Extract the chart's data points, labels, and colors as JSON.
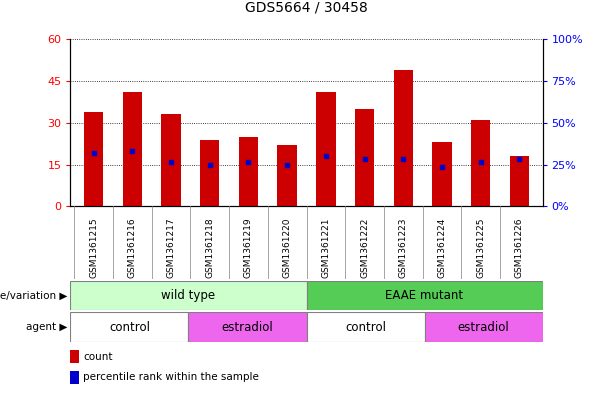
{
  "title": "GDS5664 / 30458",
  "samples": [
    "GSM1361215",
    "GSM1361216",
    "GSM1361217",
    "GSM1361218",
    "GSM1361219",
    "GSM1361220",
    "GSM1361221",
    "GSM1361222",
    "GSM1361223",
    "GSM1361224",
    "GSM1361225",
    "GSM1361226"
  ],
  "counts": [
    34,
    41,
    33,
    24,
    25,
    22,
    41,
    35,
    49,
    23,
    31,
    18
  ],
  "percentile_ranks": [
    19,
    20,
    16,
    15,
    16,
    15,
    18,
    17,
    17,
    14,
    16,
    17
  ],
  "ylim_left": [
    0,
    60
  ],
  "ylim_right": [
    0,
    100
  ],
  "yticks_left": [
    0,
    15,
    30,
    45,
    60
  ],
  "yticks_right": [
    0,
    25,
    50,
    75,
    100
  ],
  "ytick_labels_left": [
    "0",
    "15",
    "30",
    "45",
    "60"
  ],
  "ytick_labels_right": [
    "0%",
    "25%",
    "50%",
    "75%",
    "100%"
  ],
  "bar_color": "#cc0000",
  "dot_color": "#0000cc",
  "ax_bg": "#ffffff",
  "tick_area_bg": "#d8d8d8",
  "genotype_groups": [
    {
      "label": "wild type",
      "start": 0,
      "end": 6,
      "color": "#ccffcc"
    },
    {
      "label": "EAAE mutant",
      "start": 6,
      "end": 12,
      "color": "#55cc55"
    }
  ],
  "agent_groups": [
    {
      "label": "control",
      "start": 0,
      "end": 3,
      "color": "#ffffff"
    },
    {
      "label": "estradiol",
      "start": 3,
      "end": 6,
      "color": "#ee66ee"
    },
    {
      "label": "control",
      "start": 6,
      "end": 9,
      "color": "#ffffff"
    },
    {
      "label": "estradiol",
      "start": 9,
      "end": 12,
      "color": "#ee66ee"
    }
  ],
  "legend_count_label": "count",
  "legend_pct_label": "percentile rank within the sample",
  "legend_count_color": "#cc0000",
  "legend_pct_color": "#0000cc",
  "genotype_label": "genotype/variation",
  "agent_label": "agent",
  "bar_width": 0.5,
  "title_fontsize": 10
}
